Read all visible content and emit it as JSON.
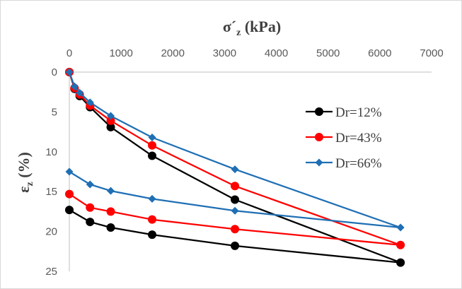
{
  "chart_data": {
    "type": "scatter",
    "x_title": "σ´",
    "x_title_sub": "z",
    "x_title_unit": "(kPa)",
    "y_title": "ε",
    "y_title_sub": "z",
    "y_title_unit": "(%)",
    "xlim": [
      0,
      7000
    ],
    "x_ticks": [
      0,
      1000,
      2000,
      3000,
      4000,
      5000,
      6000,
      7000
    ],
    "ylim": [
      0,
      25
    ],
    "y_ticks": [
      0,
      5,
      10,
      15,
      20,
      25
    ],
    "y_reversed": true,
    "x_axis_position": "top",
    "grid": false,
    "legend_position": "right",
    "series": [
      {
        "name": "Dr=12%",
        "color": "#000000",
        "marker": "circle",
        "points": [
          [
            0,
            0
          ],
          [
            100,
            2.1
          ],
          [
            200,
            3.0
          ],
          [
            400,
            4.4
          ],
          [
            800,
            6.9
          ],
          [
            1600,
            10.5
          ],
          [
            3200,
            16.0
          ],
          [
            6400,
            23.9
          ],
          [
            3200,
            21.8
          ],
          [
            1600,
            20.4
          ],
          [
            800,
            19.5
          ],
          [
            400,
            18.8
          ],
          [
            0,
            17.3
          ]
        ]
      },
      {
        "name": "Dr=43%",
        "color": "#ff0000",
        "marker": "circle",
        "points": [
          [
            0,
            0
          ],
          [
            100,
            2.0
          ],
          [
            200,
            2.8
          ],
          [
            400,
            4.2
          ],
          [
            800,
            6.1
          ],
          [
            1600,
            9.2
          ],
          [
            3200,
            14.3
          ],
          [
            6400,
            21.7
          ],
          [
            3200,
            19.7
          ],
          [
            1600,
            18.5
          ],
          [
            800,
            17.5
          ],
          [
            400,
            17.0
          ],
          [
            0,
            15.3
          ]
        ]
      },
      {
        "name": "Dr=66%",
        "color": "#1f6fb4",
        "marker": "diamond",
        "points": [
          [
            0,
            0
          ],
          [
            100,
            1.8
          ],
          [
            200,
            2.6
          ],
          [
            400,
            3.8
          ],
          [
            800,
            5.5
          ],
          [
            1600,
            8.2
          ],
          [
            3200,
            12.2
          ],
          [
            6400,
            19.5
          ],
          [
            3200,
            17.4
          ],
          [
            1600,
            15.9
          ],
          [
            800,
            14.9
          ],
          [
            400,
            14.1
          ],
          [
            0,
            12.5
          ]
        ]
      }
    ]
  }
}
